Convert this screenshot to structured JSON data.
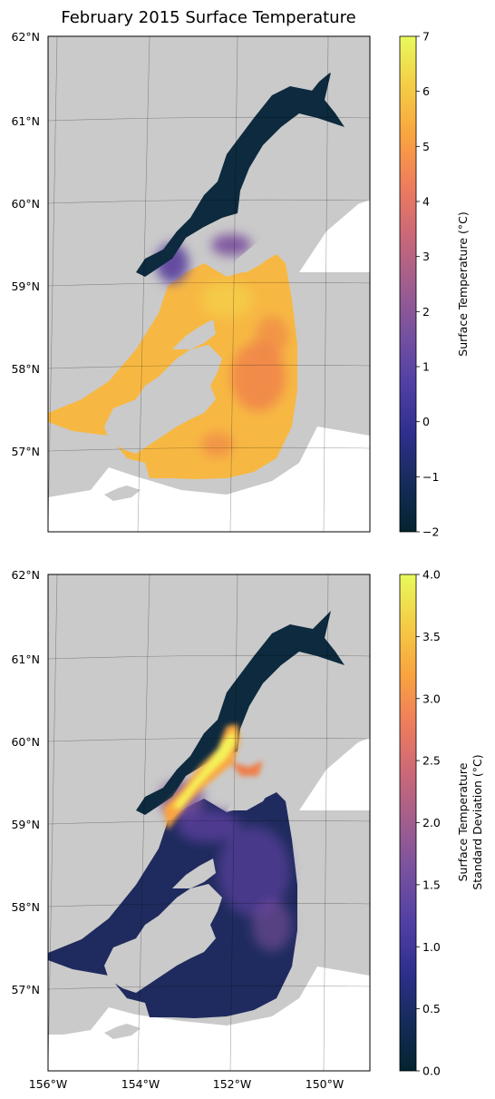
{
  "figure": {
    "title": "February 2015 Surface Temperature"
  },
  "maps": [
    {
      "id": "top",
      "lat_labels": [
        "62°N",
        "61°N",
        "60°N",
        "59°N",
        "58°N",
        "57°N"
      ],
      "colorbar": {
        "label_lines": [
          "Surface Temperature (°C)"
        ],
        "ticks": [
          "7",
          "6",
          "5",
          "4",
          "3",
          "2",
          "1",
          "0",
          "−1",
          "−2"
        ],
        "range": [
          -2,
          7
        ],
        "colormap": "thermal"
      }
    },
    {
      "id": "bottom",
      "lat_labels": [
        "62°N",
        "61°N",
        "60°N",
        "59°N",
        "58°N",
        "57°N"
      ],
      "lon_labels": [
        "156°W",
        "154°W",
        "152°W",
        "150°W"
      ],
      "colorbar": {
        "label_lines": [
          "Surface Temperature",
          "Standard Deviation (°C)"
        ],
        "ticks": [
          "4.0",
          "3.5",
          "3.0",
          "2.5",
          "2.0",
          "1.5",
          "1.0",
          "0.5",
          "0.0"
        ],
        "range": [
          0,
          4
        ],
        "colormap": "thermal"
      }
    }
  ],
  "colors": {
    "land": "#cacaca",
    "inlet_cold": "#0d2a3e",
    "warm": "#f7b843",
    "orange": "#ef7f4a",
    "purple": "#5a3e9c",
    "deep_navy": "#1f2b5e",
    "yellow": "#f4f25a"
  }
}
